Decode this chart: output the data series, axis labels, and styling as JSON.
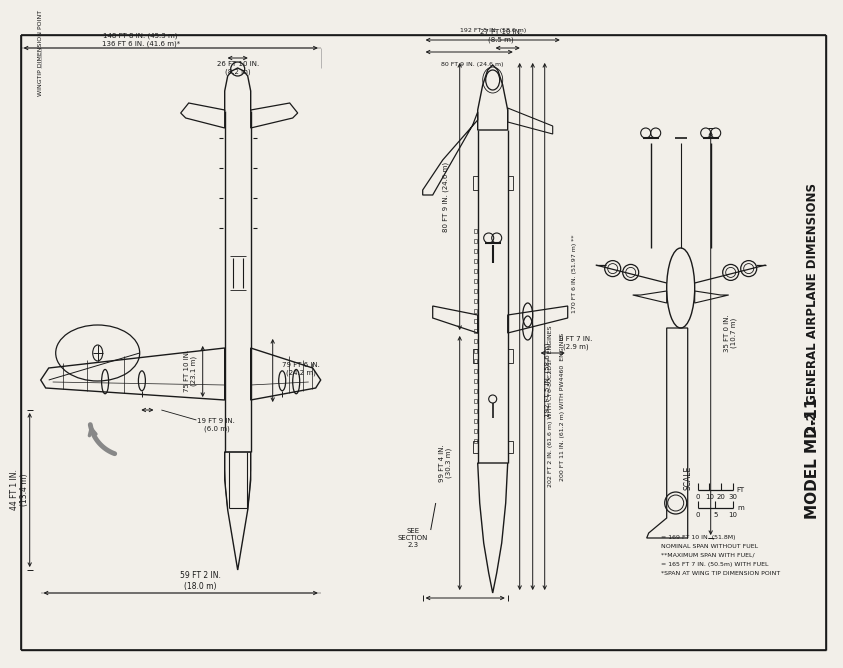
{
  "bg_color": "#f2efe9",
  "line_color": "#1a1a1a",
  "gray_color": "#888888",
  "title_line1": "2.2  GENERAL AIRPLANE DIMENSIONS",
  "title_line2": "MODEL MD-11",
  "footnotes": [
    "*SPAN AT WING TIP DIMENSION POINT",
    "= 165 FT 7 IN. (50.5m) WITH FUEL",
    "**MAXIMUM SPAN WITH FUEL/",
    "NOMINAL SPAN WITHOUT FUEL",
    "= 169 FT 10 IN. (51.8M)"
  ],
  "dim_labels": {
    "wingspan": "59 FT 2 IN.\n(18.0 m)",
    "tail_ht": "44 FT 1 IN.\n(13.4 m)",
    "full_span1": "148 FT 8 IN. (45.3 m)",
    "full_span2": "136 FT 6 IN. (41.6 m)*",
    "wingtip_pt": "WINGTIP DIMENSION POINT",
    "eng19": "19 FT 9 IN.\n(6.0 m)",
    "fus75": "75 FT 10 IN.\n(23.1 m)",
    "fus79": "79 FT 6 IN.\n(24.2 m)",
    "nose26": "26 FT 10 IN.\n(8.2 m)",
    "side99": "99 FT 4 IN.\n(30.3 m)",
    "side80": "80 FT 9 IN. (24.6 m)",
    "side192": "192 FT 5 IN. (58.6 m)",
    "side27": "27 FT 10 IN.\n(8.5 m)",
    "side9": "9 FT 7 IN.\n(2.9 m)",
    "tail202": "202 FT 2 IN. (61.6 m) WITH CF6-80C2D1F  ENGINES",
    "tail200": "200 FT 11 IN. (61.2 m) WITH PW4460  ENGINES",
    "total170": "170 FT 6 IN. (51.97 m) **",
    "front35": "35 FT 0 IN.\n(10.7 m)",
    "see_sec": "SEE\nSECTION\n2.3"
  }
}
